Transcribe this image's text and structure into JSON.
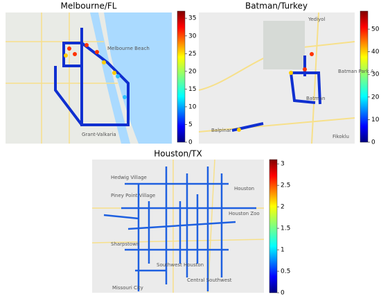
{
  "panels": [
    {
      "title": "Melbourne/FL",
      "colorbar": {
        "lim": [
          0,
          37
        ],
        "ticks": [
          0,
          5,
          10,
          15,
          20,
          25,
          30,
          35
        ]
      },
      "place_labels": [
        "Melbourne Beach",
        "Grant-Valkaria"
      ]
    },
    {
      "title": "Batman/Turkey",
      "colorbar": {
        "lim": [
          0,
          58
        ],
        "ticks": [
          0,
          10,
          20,
          30,
          40,
          50
        ]
      },
      "place_labels": [
        "Yediyol",
        "Batman Park A",
        "Batman",
        "Balpinar",
        "Fikoklu"
      ]
    },
    {
      "title": "Houston/TX",
      "colorbar": {
        "lim": [
          0,
          3.1
        ],
        "ticks": [
          0,
          0.5,
          1,
          1.5,
          2,
          2.5,
          3
        ]
      },
      "place_labels": [
        "Hedwig Village",
        "Piney Point Village",
        "Houston",
        "Houston Zoo",
        "Sharpstown",
        "Southwest Houston",
        "Central Southwest",
        "Missouri City"
      ]
    }
  ]
}
